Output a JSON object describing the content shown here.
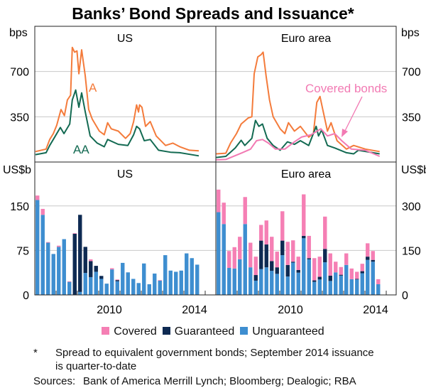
{
  "title": "Banks’ Bond Spreads and Issuance*",
  "colors": {
    "A": "#f47b3b",
    "AA": "#136a52",
    "covered_line": "#f27ab3",
    "covered": "#f57fb4",
    "guaranteed": "#0e2a52",
    "unguaranteed": "#3e8ed0",
    "grid": "#c8c8c8"
  },
  "legend": [
    {
      "label": "Covered",
      "color": "#f57fb4"
    },
    {
      "label": "Guaranteed",
      "color": "#0e2a52"
    },
    {
      "label": "Unguaranteed",
      "color": "#3e8ed0"
    }
  ],
  "footnote_marker": "*",
  "footnote": "Spread to equivalent government bonds; September 2014 issuance is quarter-to-date",
  "footnote_line1": "Spread to equivalent government bonds; September 2014 issuance",
  "footnote_line2": "is quarter-to-date",
  "sources_label": "Sources:",
  "sources": "Bank of America Merrill Lynch; Bloomberg; Dealogic; RBA",
  "chart_data": [
    {
      "type": "line",
      "panel": "top-left",
      "title": "US",
      "ylabel": "bps",
      "xlim": [
        2007,
        2015.35
      ],
      "ylim": [
        0,
        1050
      ],
      "yticks": [
        350,
        700
      ],
      "grid": true,
      "annotations": [
        "A",
        "AA"
      ],
      "series": [
        {
          "name": "A",
          "x": [
            2007.03,
            2007.53,
            2007.7,
            2007.87,
            2008.03,
            2008.23,
            2008.39,
            2008.53,
            2008.68,
            2008.76,
            2008.87,
            2008.98,
            2009.07,
            2009.2,
            2009.37,
            2009.53,
            2009.7,
            2010.03,
            2010.26,
            2010.42,
            2010.59,
            2010.92,
            2011.26,
            2011.48,
            2011.64,
            2011.78,
            2011.87,
            2011.92,
            2012.03,
            2012.2,
            2012.42,
            2012.7,
            2013.14,
            2013.48,
            2013.81,
            2014.26,
            2014.7
          ],
          "y": [
            81,
            100,
            174,
            220,
            285,
            406,
            359,
            480,
            517,
            887,
            850,
            859,
            683,
            868,
            665,
            406,
            331,
            239,
            211,
            304,
            257,
            239,
            183,
            220,
            313,
            442,
            387,
            442,
            424,
            276,
            313,
            202,
            128,
            146,
            118,
            91,
            87
          ]
        },
        {
          "name": "AA",
          "x": [
            2007.03,
            2007.53,
            2007.7,
            2007.9,
            2008.2,
            2008.37,
            2008.64,
            2008.76,
            2008.92,
            2009.07,
            2009.2,
            2009.37,
            2009.6,
            2009.93,
            2010.26,
            2010.42,
            2010.92,
            2011.37,
            2011.64,
            2011.78,
            2011.92,
            2012.14,
            2012.42,
            2012.81,
            2013.37,
            2013.81,
            2014.7
          ],
          "y": [
            57,
            72,
            128,
            183,
            267,
            220,
            294,
            480,
            557,
            424,
            535,
            387,
            202,
            146,
            118,
            174,
            137,
            128,
            211,
            276,
            257,
            165,
            174,
            91,
            76,
            72,
            48
          ]
        }
      ]
    },
    {
      "type": "line",
      "panel": "top-right",
      "title": "Euro area",
      "ylabel": "bps",
      "xlim": [
        2007,
        2015.35
      ],
      "ylim": [
        0,
        1050
      ],
      "yticks": [
        350,
        700
      ],
      "grid": true,
      "annotations": [
        "Covered bonds"
      ],
      "series": [
        {
          "name": "A",
          "x": [
            2007.02,
            2007.47,
            2007.69,
            2007.97,
            2008.19,
            2008.52,
            2008.69,
            2008.8,
            2008.97,
            2009.13,
            2009.22,
            2009.36,
            2009.52,
            2009.69,
            2010.02,
            2010.24,
            2010.41,
            2010.69,
            2010.97,
            2011.36,
            2011.58,
            2011.74,
            2011.89,
            2012.02,
            2012.24,
            2012.41,
            2012.69,
            2013.13,
            2013.47,
            2014.02,
            2014.69
          ],
          "y": [
            63,
            68,
            146,
            220,
            294,
            341,
            350,
            683,
            813,
            831,
            850,
            665,
            480,
            350,
            257,
            220,
            304,
            239,
            276,
            193,
            220,
            461,
            507,
            406,
            239,
            304,
            165,
            100,
            128,
            100,
            81
          ]
        },
        {
          "name": "AA",
          "x": [
            2007.02,
            2007.47,
            2007.91,
            2008.19,
            2008.36,
            2008.69,
            2008.86,
            2009.02,
            2009.19,
            2009.41,
            2009.69,
            2010.02,
            2010.36,
            2010.69,
            2010.97,
            2011.36,
            2011.71,
            2011.82,
            2011.97,
            2012.24,
            2012.58,
            2013.13,
            2013.47,
            2013.69,
            2014.69
          ],
          "y": [
            35,
            44,
            109,
            168,
            128,
            183,
            322,
            276,
            294,
            183,
            128,
            91,
            156,
            137,
            165,
            128,
            276,
            202,
            248,
            128,
            109,
            72,
            63,
            91,
            63
          ]
        },
        {
          "name": "Covered bonds",
          "x": [
            2007.02,
            2007.47,
            2008.24,
            2008.63,
            2008.91,
            2009.19,
            2009.47,
            2009.8,
            2010.24,
            2010.69,
            2011.02,
            2011.47,
            2011.93,
            2012.24,
            2012.58,
            2012.91,
            2013.36,
            2014.02,
            2014.69
          ],
          "y": [
            17,
            20,
            72,
            100,
            165,
            174,
            146,
            100,
            100,
            156,
            193,
            211,
            257,
            202,
            220,
            165,
            100,
            91,
            44
          ]
        }
      ]
    },
    {
      "type": "bar",
      "stacked": true,
      "panel": "bottom-left",
      "title": "US",
      "ylabel": "US$b",
      "x_start": "2007-Q1",
      "x_end": "2014-Q3",
      "xlim": [
        2007,
        2015.35
      ],
      "ylim": [
        0,
        224
      ],
      "yticks": [
        0,
        75,
        150
      ],
      "xticklabels": [
        "2010",
        "2014"
      ],
      "grid": true,
      "series": [
        {
          "name": "Unguaranteed",
          "values": [
            160,
            135,
            88,
            69,
            81,
            94,
            22,
            0,
            5,
            37,
            30,
            39,
            27,
            19,
            43,
            23,
            54,
            38,
            27,
            20,
            53,
            18,
            36,
            24,
            67,
            41,
            39,
            41,
            70,
            62,
            51
          ]
        },
        {
          "name": "Guaranteed",
          "values": [
            0,
            0,
            0,
            0,
            0,
            0,
            0,
            103,
            130,
            44,
            27,
            10,
            5,
            0,
            0,
            2,
            0,
            0,
            0,
            0,
            0,
            0,
            0,
            0,
            0,
            0,
            0,
            0,
            0,
            0,
            0
          ]
        },
        {
          "name": "Covered",
          "values": [
            7.5,
            10,
            1,
            0,
            2,
            0,
            1,
            1,
            0,
            0,
            3,
            0,
            0,
            0,
            2,
            1,
            0,
            0,
            0,
            0,
            0,
            0,
            0,
            1,
            0,
            0,
            0,
            0,
            0,
            0,
            0
          ]
        }
      ]
    },
    {
      "type": "bar",
      "stacked": true,
      "panel": "bottom-right",
      "title": "Euro area",
      "ylabel": "US$b",
      "x_start": "2007-Q1",
      "x_end": "2014-Q3",
      "xlim": [
        2007,
        2015.35
      ],
      "ylim": [
        0,
        448
      ],
      "yticks": [
        0,
        150,
        300
      ],
      "xticklabels": [
        "2010",
        "2014"
      ],
      "grid": true,
      "series": [
        {
          "name": "Unguaranteed",
          "values": [
            279,
            239,
            91,
            89,
            120,
            239,
            93,
            48,
            87,
            93,
            81,
            71,
            134,
            62,
            109,
            75,
            191,
            120,
            44,
            52,
            110,
            47,
            76,
            65,
            101,
            53,
            52,
            73,
            118,
            112,
            36
          ]
        },
        {
          "name": "Guaranteed",
          "values": [
            0,
            0,
            0,
            0,
            0,
            0,
            0,
            19,
            96,
            77,
            33,
            22,
            49,
            39,
            3,
            9,
            8,
            4,
            5,
            9,
            45,
            18,
            0,
            3,
            0,
            0,
            2,
            7,
            11,
            6,
            0
          ]
        },
        {
          "name": "Covered",
          "values": [
            76,
            72,
            57,
            72,
            76,
            91,
            83,
            62,
            53,
            81,
            82,
            53,
            99,
            78,
            72,
            45,
            140,
            75,
            75,
            68,
            109,
            75,
            36,
            26,
            39,
            36,
            24,
            25,
            45,
            30,
            17
          ]
        }
      ]
    }
  ]
}
